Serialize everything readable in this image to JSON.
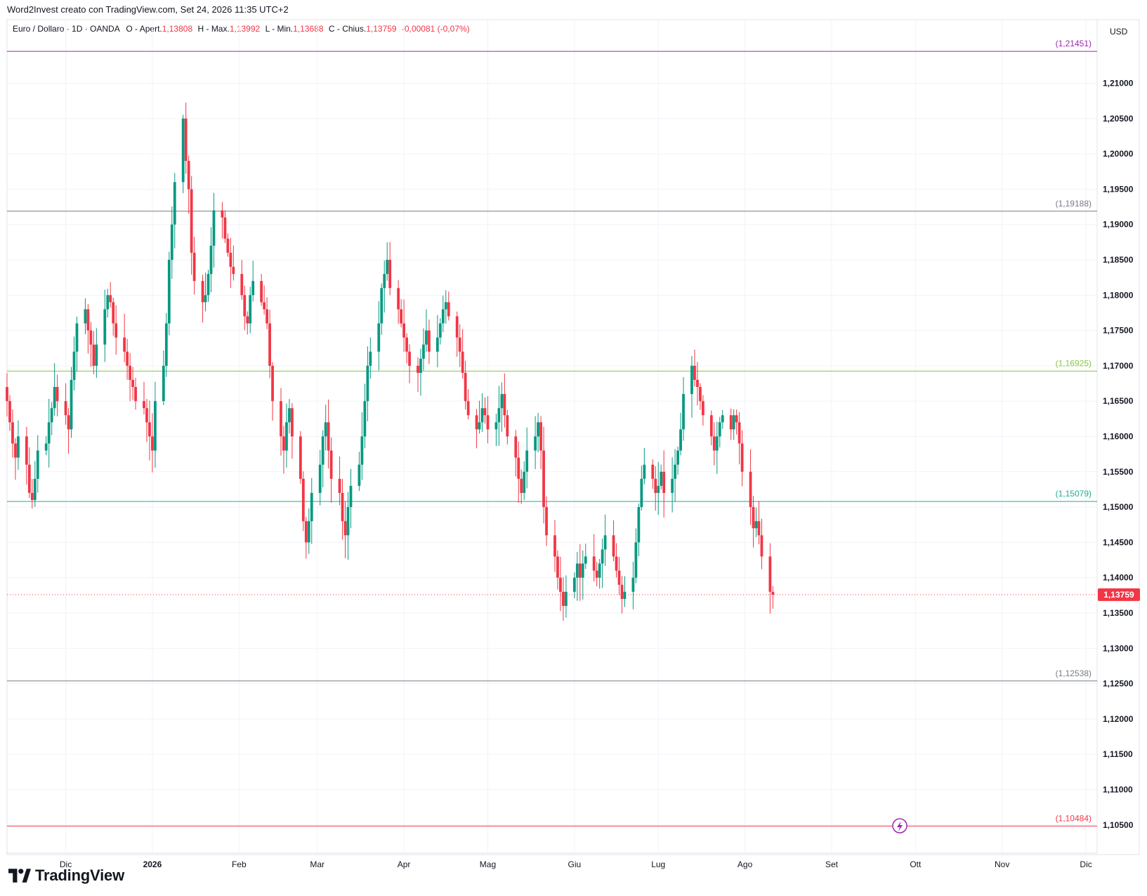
{
  "header": {
    "credit": "Word2Invest creato con TradingView.com, Set 24, 2026 11:35 UTC+2"
  },
  "legend": {
    "symbol": "Euro / Dollaro · 1D · OANDA",
    "open_label": "O - Apert.",
    "open": "1,13808",
    "high_label": "H - Max.",
    "high": "1,13992",
    "low_label": "L - Min.",
    "low": "1,13688",
    "close_label": "C - Chius.",
    "close": "1,13759",
    "change": "-0,00081 (-0,07%)"
  },
  "currency": "USD",
  "branding": "TradingView",
  "colors": {
    "up": "#089981",
    "down": "#f23645",
    "grid": "#f0f3fa",
    "axis_text": "#131722"
  },
  "chart_data": {
    "type": "candlestick",
    "symbol": "EUR/USD",
    "timeframe": "1D",
    "ylim": [
      1.101,
      1.219
    ],
    "y_ticks": [
      "1,10500",
      "1,11000",
      "1,11500",
      "1,12000",
      "1,12500",
      "1,13000",
      "1,13500",
      "1,14000",
      "1,14500",
      "1,15000",
      "1,15500",
      "1,16000",
      "1,16500",
      "1,17000",
      "1,17500",
      "1,18000",
      "1,18500",
      "1,19000",
      "1,19500",
      "1,20000",
      "1,20500",
      "1,21000"
    ],
    "y_tick_values": [
      1.105,
      1.11,
      1.115,
      1.12,
      1.125,
      1.13,
      1.135,
      1.14,
      1.145,
      1.15,
      1.155,
      1.16,
      1.165,
      1.17,
      1.175,
      1.18,
      1.185,
      1.19,
      1.195,
      1.2,
      1.205,
      1.21
    ],
    "x_ticks": [
      {
        "label": "Dic",
        "date": "2025-12-01",
        "bold": false
      },
      {
        "label": "2026",
        "date": "2026-01-01",
        "bold": true
      },
      {
        "label": "Feb",
        "date": "2026-02-01",
        "bold": false
      },
      {
        "label": "Mar",
        "date": "2026-03-01",
        "bold": false
      },
      {
        "label": "Apr",
        "date": "2026-04-01",
        "bold": false
      },
      {
        "label": "Mag",
        "date": "2026-05-01",
        "bold": false
      },
      {
        "label": "Giu",
        "date": "2026-06-01",
        "bold": false
      },
      {
        "label": "Lug",
        "date": "2026-07-01",
        "bold": false
      },
      {
        "label": "Ago",
        "date": "2026-08-01",
        "bold": false
      },
      {
        "label": "Set",
        "date": "2026-09-01",
        "bold": false
      },
      {
        "label": "Ott",
        "date": "2026-10-01",
        "bold": false
      },
      {
        "label": "Nov",
        "date": "2026-11-01",
        "bold": false
      },
      {
        "label": "Dic",
        "date": "2026-12-01",
        "bold": false
      }
    ],
    "xlim": [
      "2025-11-10",
      "2026-12-05"
    ],
    "horizontal_lines": [
      {
        "value": 1.21451,
        "label": "(1,21451)",
        "color": "#9c27b0"
      },
      {
        "value": 1.19188,
        "label": "(1,19188)",
        "color": "#787b86"
      },
      {
        "value": 1.16925,
        "label": "(1,16925)",
        "color": "#8bc34a"
      },
      {
        "value": 1.15079,
        "label": "(1,15079)",
        "color": "#22ab94"
      },
      {
        "value": 1.12538,
        "label": "(1,12538)",
        "color": "#787b86"
      },
      {
        "value": 1.10484,
        "label": "(1,10484)",
        "color": "#f23645"
      }
    ],
    "last_price": {
      "value": 1.13759,
      "label": "1,13759",
      "color": "#f23645"
    },
    "candles_start": "2025-11-10",
    "candles_closes": [
      1.165,
      1.162,
      1.159,
      1.157,
      1.16,
      1.156,
      1.152,
      1.151,
      1.154,
      1.158,
      1.159,
      1.162,
      1.164,
      1.167,
      1.165,
      1.163,
      1.161,
      1.168,
      1.172,
      1.176,
      1.178,
      1.175,
      1.173,
      1.17,
      1.173,
      1.178,
      1.18,
      1.179,
      1.176,
      1.174,
      1.172,
      1.17,
      1.168,
      1.167,
      1.165,
      1.164,
      1.162,
      1.16,
      1.158,
      1.165,
      1.17,
      1.176,
      1.185,
      1.19,
      1.196,
      1.205,
      1.199,
      1.195,
      1.186,
      1.182,
      1.179,
      1.18,
      1.183,
      1.187,
      1.192,
      1.191,
      1.188,
      1.186,
      1.184,
      1.183,
      1.18,
      1.177,
      1.176,
      1.18,
      1.182,
      1.179,
      1.178,
      1.176,
      1.17,
      1.165,
      1.16,
      1.158,
      1.162,
      1.164,
      1.16,
      1.154,
      1.148,
      1.145,
      1.148,
      1.152,
      1.156,
      1.16,
      1.162,
      1.158,
      1.154,
      1.152,
      1.148,
      1.146,
      1.15,
      1.153,
      1.156,
      1.16,
      1.165,
      1.17,
      1.172,
      1.176,
      1.181,
      1.183,
      1.185,
      1.181,
      1.178,
      1.176,
      1.174,
      1.172,
      1.17,
      1.169,
      1.171,
      1.173,
      1.175,
      1.172,
      1.174,
      1.176,
      1.178,
      1.179,
      1.177,
      1.174,
      1.172,
      1.169,
      1.165,
      1.163,
      1.161,
      1.162,
      1.164,
      1.163,
      1.161,
      1.162,
      1.164,
      1.166,
      1.163,
      1.16,
      1.157,
      1.154,
      1.152,
      1.155,
      1.158,
      1.16,
      1.162,
      1.158,
      1.15,
      1.146,
      1.143,
      1.14,
      1.138,
      1.136,
      1.138,
      1.14,
      1.142,
      1.14,
      1.142,
      1.143,
      1.141,
      1.14,
      1.142,
      1.144,
      1.146,
      1.143,
      1.141,
      1.139,
      1.137,
      1.138,
      1.14,
      1.145,
      1.15,
      1.154,
      1.156,
      1.154,
      1.152,
      1.153,
      1.155,
      1.152,
      1.154,
      1.156,
      1.158,
      1.161,
      1.166,
      1.17,
      1.168,
      1.167,
      1.165,
      1.163,
      1.16,
      1.158,
      1.16,
      1.162,
      1.163,
      1.161,
      1.163,
      1.162,
      1.159,
      1.155,
      1.15,
      1.147,
      1.148,
      1.146,
      1.143,
      1.138,
      1.13759
    ]
  }
}
